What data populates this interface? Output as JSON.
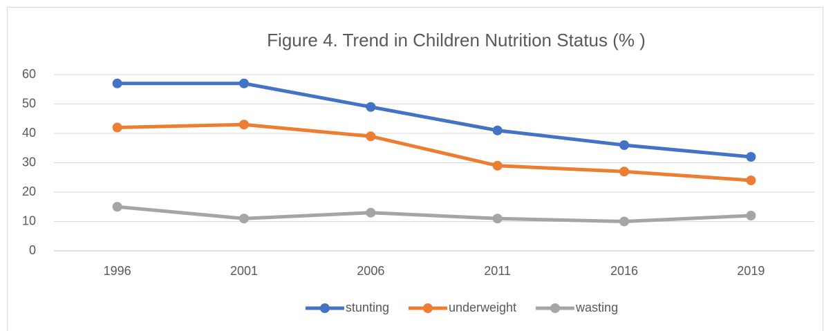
{
  "chart_data": {
    "type": "line",
    "title": "Figure 4. Trend in Children Nutrition Status (% )",
    "categories": [
      "1996",
      "2001",
      "2006",
      "2011",
      "2016",
      "2019"
    ],
    "series": [
      {
        "name": "stunting",
        "color": "#4472c4",
        "values": [
          57,
          57,
          49,
          41,
          36,
          32
        ]
      },
      {
        "name": "underweight",
        "color": "#ed7d31",
        "values": [
          42,
          43,
          39,
          29,
          27,
          24
        ]
      },
      {
        "name": "wasting",
        "color": "#a5a5a5",
        "values": [
          15,
          11,
          13,
          11,
          10,
          12
        ]
      }
    ],
    "ylim": [
      0,
      60
    ],
    "yticks": [
      0,
      10,
      20,
      30,
      40,
      50,
      60
    ],
    "grid": true,
    "legend": "bottom"
  }
}
